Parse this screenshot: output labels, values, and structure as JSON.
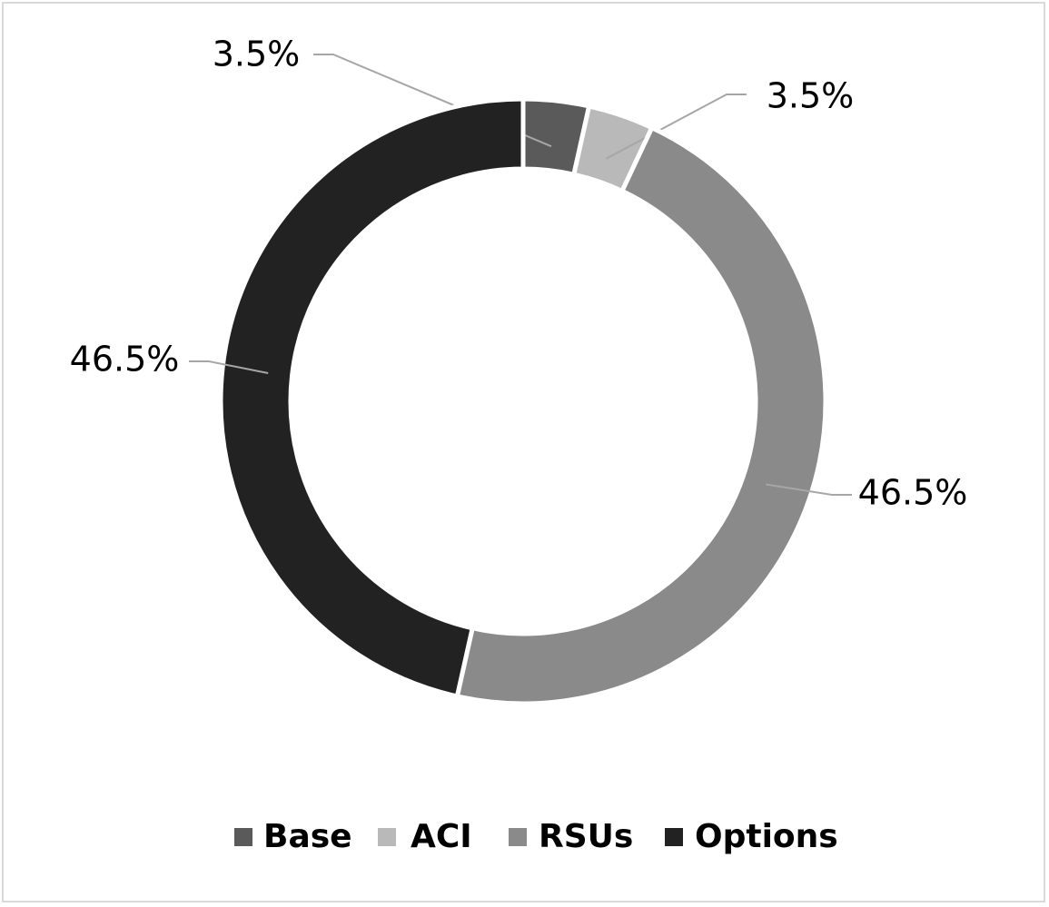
{
  "chart_data": {
    "type": "donut",
    "categories": [
      "Base",
      "ACI",
      "RSUs",
      "Options"
    ],
    "values": [
      3.5,
      3.5,
      46.5,
      46.5
    ],
    "value_labels": [
      "3.5%",
      "3.5%",
      "46.5%",
      "46.5%"
    ],
    "colors": [
      "#5a5a5a",
      "#b9b9b9",
      "#8a8a8a",
      "#222222"
    ],
    "legend": "bottom"
  }
}
